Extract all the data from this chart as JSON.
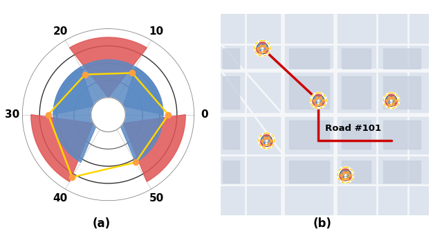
{
  "fig_width": 6.26,
  "fig_height": 3.38,
  "dpi": 100,
  "label_a": "(a)",
  "label_b": "(b)",
  "radar_labels": [
    "0",
    "10",
    "20",
    "30",
    "40",
    "50"
  ],
  "radar_rings": [
    10,
    20,
    30,
    40,
    50
  ],
  "inner_ring": 10,
  "yellow_hex_r": [
    35,
    28,
    27,
    35,
    42,
    32
  ],
  "orange_dot_color": "#FFA040",
  "yellow_line_color": "#FFD700",
  "red_shape_color": "#E05555",
  "blue_shape_color": "#5B8AC4",
  "road_label": "Road #101",
  "road_label_color": "#000000",
  "arrow_color": "#CC0000",
  "map_bg_color": "#E2E8F0"
}
